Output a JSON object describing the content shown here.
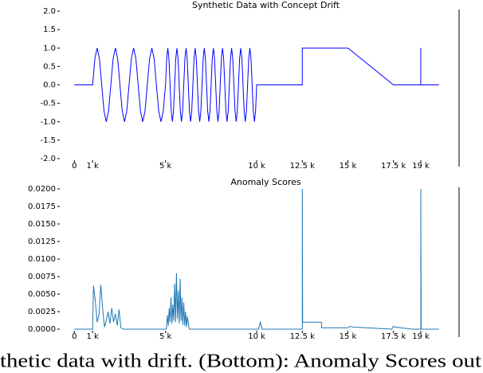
{
  "chart_data": [
    {
      "type": "line",
      "title": "Synthetic Data with Concept Drift",
      "color": "#0000ff",
      "xlim": [
        -800,
        21100
      ],
      "ylim": [
        -2,
        2
      ],
      "xticks": [
        0,
        {
          "value": 1000,
          "label": "1 k"
        },
        {
          "value": 5000,
          "label": "5 k"
        },
        {
          "value": 10000,
          "label": "10 k"
        },
        {
          "value": 12500,
          "label": "12.5 k"
        },
        {
          "value": 15000,
          "label": "15 k"
        },
        {
          "value": 17500,
          "label": "17.5 k"
        },
        {
          "value": 19000,
          "label": "19 k"
        }
      ],
      "yticks": [
        {
          "value": 2,
          "label": "2.0"
        },
        {
          "value": 1.5,
          "label": "1.5"
        },
        {
          "value": 1,
          "label": "1.0"
        },
        {
          "value": 0.5,
          "label": "0.5"
        },
        {
          "value": 0,
          "label": "0.0"
        },
        {
          "value": -0.5,
          "label": "-0.5"
        },
        {
          "value": -1,
          "label": "-1.0"
        },
        {
          "value": -1.5,
          "label": "-1.5"
        },
        {
          "value": -2,
          "label": "-2.0"
        }
      ],
      "x": [
        0,
        1000,
        1125,
        1250,
        1375,
        1500,
        1625,
        1750,
        1875,
        2000,
        2125,
        2250,
        2375,
        2500,
        2625,
        2750,
        2875,
        3000,
        3125,
        3250,
        3375,
        3500,
        3625,
        3750,
        3875,
        4000,
        4125,
        4250,
        4375,
        4500,
        4625,
        4750,
        4875,
        5000,
        5062.5,
        5125,
        5187.5,
        5250,
        5312.5,
        5375,
        5437.5,
        5500,
        5562.5,
        5625,
        5687.5,
        5750,
        5812.5,
        5875,
        5937.5,
        6000,
        6062.5,
        6125,
        6187.5,
        6250,
        6312.5,
        6375,
        6437.5,
        6500,
        6562.5,
        6625,
        6687.5,
        6750,
        6812.5,
        6875,
        6937.5,
        7000,
        7062.5,
        7125,
        7187.5,
        7250,
        7312.5,
        7375,
        7437.5,
        7500,
        7562.5,
        7625,
        7687.5,
        7750,
        7812.5,
        7875,
        7937.5,
        8000,
        8062.5,
        8125,
        8187.5,
        8250,
        8312.5,
        8375,
        8437.5,
        8500,
        8562.5,
        8625,
        8687.5,
        8750,
        8812.5,
        8875,
        8937.5,
        9000,
        9062.5,
        9125,
        9187.5,
        9250,
        9312.5,
        9375,
        9437.5,
        9500,
        9562.5,
        9625,
        9687.5,
        9750,
        9812.5,
        9875,
        9937.5,
        10000,
        12500,
        12500,
        15000,
        17500,
        19000,
        19000,
        19000,
        20000
      ],
      "values": [
        0,
        0,
        0.71,
        1,
        0.71,
        0,
        -0.71,
        -1,
        -0.71,
        0,
        0.71,
        1,
        0.71,
        0,
        -0.71,
        -1,
        -0.71,
        0,
        0.71,
        1,
        0.71,
        0,
        -0.71,
        -1,
        -0.71,
        0,
        0.71,
        1,
        0.71,
        0,
        -0.71,
        -1,
        -0.71,
        0,
        0.71,
        1,
        0.71,
        0,
        -0.71,
        -1,
        -0.71,
        0,
        0.71,
        1,
        0.71,
        0,
        -0.71,
        -1,
        -0.71,
        0,
        0.71,
        1,
        0.71,
        0,
        -0.71,
        -1,
        -0.71,
        0,
        0.71,
        1,
        0.71,
        0,
        -0.71,
        -1,
        -0.71,
        0,
        0.71,
        1,
        0.71,
        0,
        -0.71,
        -1,
        -0.71,
        0,
        0.71,
        1,
        0.71,
        0,
        -0.71,
        -1,
        -0.71,
        0,
        0.71,
        1,
        0.71,
        0,
        -0.71,
        -1,
        -0.71,
        0,
        0.71,
        1,
        0.71,
        0,
        -0.71,
        -1,
        -0.71,
        0,
        0.71,
        1,
        0.71,
        0,
        -0.71,
        -1,
        -0.71,
        0,
        0.71,
        1,
        0.71,
        0,
        -0.71,
        -1,
        -0.71,
        0,
        0,
        1,
        1,
        0,
        0,
        1,
        0,
        0
      ]
    },
    {
      "type": "line",
      "title": "Anomaly Scores",
      "color": "#1f77b4",
      "xlim": [
        -800,
        21100
      ],
      "ylim": [
        0,
        0.02
      ],
      "xticks": [
        0,
        {
          "value": 1000,
          "label": "1 k"
        },
        {
          "value": 5000,
          "label": "5 k"
        },
        {
          "value": 10000,
          "label": "10 k"
        },
        {
          "value": 12500,
          "label": "12.5 k"
        },
        {
          "value": 15000,
          "label": "15 k"
        },
        {
          "value": 17500,
          "label": "17.5 k"
        },
        {
          "value": 19000,
          "label": "19 k"
        }
      ],
      "yticks": [
        {
          "value": 0.02,
          "label": "0.0200"
        },
        {
          "value": 0.0175,
          "label": "0.0175"
        },
        {
          "value": 0.015,
          "label": "0.0150"
        },
        {
          "value": 0.0125,
          "label": "0.0125"
        },
        {
          "value": 0.01,
          "label": "0.0100"
        },
        {
          "value": 0.0075,
          "label": "0.0075"
        },
        {
          "value": 0.005,
          "label": "0.0050"
        },
        {
          "value": 0.0025,
          "label": "0.0025"
        },
        {
          "value": 0,
          "label": "0.0000"
        }
      ],
      "x": [
        0,
        1000,
        1050,
        1150,
        1250,
        1350,
        1450,
        1550,
        1650,
        1750,
        1850,
        1950,
        2050,
        2150,
        2250,
        2350,
        2450,
        2550,
        2700,
        5050,
        5100,
        5150,
        5200,
        5250,
        5300,
        5350,
        5400,
        5450,
        5500,
        5550,
        5600,
        5650,
        5700,
        5750,
        5800,
        5850,
        5900,
        5950,
        6000,
        6050,
        6100,
        6150,
        6200,
        6300,
        10100,
        10200,
        10300,
        12500,
        12500,
        12520,
        13550,
        13560,
        15000,
        15100,
        15300,
        17400,
        17500,
        17600,
        18500,
        19000,
        19000,
        19020,
        20000
      ],
      "values": [
        0,
        0,
        0.0062,
        0.004,
        0.001,
        0.002,
        0.0063,
        0.003,
        0.0003,
        0.0012,
        0.0025,
        0.0008,
        0.003,
        0.001,
        0.0022,
        0.0005,
        0.0028,
        0.0002,
        0,
        0,
        0.002,
        0.0005,
        0.003,
        0.001,
        0.0045,
        0.0008,
        0.0035,
        0.0012,
        0.0065,
        0.001,
        0.008,
        0.0015,
        0.0055,
        0.0008,
        0.0072,
        0.0012,
        0.0045,
        0.0006,
        0.0038,
        0.0005,
        0.0025,
        0.0003,
        0.0018,
        0,
        0,
        0.001,
        0,
        0,
        0.02,
        0.001,
        0.001,
        0.0002,
        0.0002,
        0.0004,
        0.0003,
        0,
        0.0004,
        0.0003,
        0,
        0,
        0.02,
        0,
        0
      ]
    }
  ],
  "caption": "thetic data with drift. (Bottom): Anomaly Scores out"
}
